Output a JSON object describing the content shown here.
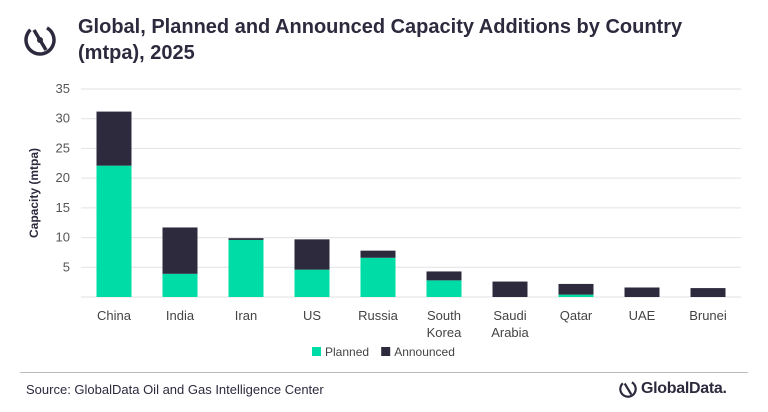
{
  "header": {
    "title": "Global, Planned and Announced Capacity Additions by Country (mtpa), 2025"
  },
  "footer": {
    "source": "Source: GlobalData Oil and Gas Intelligence Center",
    "brand": "GlobalData."
  },
  "colors": {
    "planned": "#00dca5",
    "announced": "#2e2a3e",
    "text": "#2e2a3e",
    "grid": "#e2e2e2"
  },
  "chart_data": {
    "type": "bar",
    "stacked": true,
    "title": "Global, Planned and Announced Capacity Additions by Country (mtpa), 2025",
    "xlabel": "",
    "ylabel": "Capacity (mtpa)",
    "ylim": [
      0,
      35
    ],
    "yticks": [
      5,
      10,
      15,
      20,
      25,
      30,
      35
    ],
    "grid": true,
    "legend": "bottom",
    "categories": [
      "China",
      "India",
      "Iran",
      "US",
      "Russia",
      "South Korea",
      "Saudi Arabia",
      "Qatar",
      "UAE",
      "Brunei"
    ],
    "series": [
      {
        "name": "Planned",
        "values": [
          22.1,
          3.9,
          9.6,
          4.6,
          6.6,
          2.8,
          0,
          0.4,
          0,
          0
        ]
      },
      {
        "name": "Announced",
        "values": [
          9.1,
          7.8,
          0.3,
          5.1,
          1.2,
          1.5,
          2.6,
          1.8,
          1.6,
          1.5
        ]
      }
    ]
  }
}
